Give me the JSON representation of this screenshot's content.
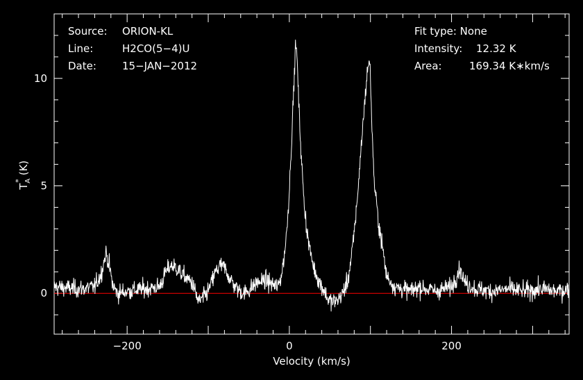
{
  "info_left": {
    "source_key": "Source:",
    "source_val": "ORION-KL",
    "line_key": "Line:",
    "line_val": "H2CO(5−4)U",
    "date_key": "Date:",
    "date_val": "15−JAN−2012"
  },
  "info_right": {
    "fit_text": "Fit type: None",
    "intensity_key": "Intensity:",
    "intensity_val": "12.32 K",
    "area_key": "Area:",
    "area_val": "169.34 K∗km/s"
  },
  "colors": {
    "background": "#000000",
    "axes": "#ffffff",
    "spectrum": "#ffffff",
    "baseline": "#ff0000"
  },
  "chart_data": {
    "type": "line",
    "xlabel": "Velocity (km/s)",
    "ylabel_main": "T",
    "ylabel_sup": "*",
    "ylabel_sub": "A",
    "ylabel_unit": "(K)",
    "xlim": [
      -290,
      345
    ],
    "ylim": [
      -1.9,
      13.0
    ],
    "xticks": [
      -200,
      0,
      200
    ],
    "xtick_labels": [
      "−200",
      "0",
      "200"
    ],
    "yticks": [
      0,
      5,
      10
    ],
    "ytick_labels": [
      "0",
      "5",
      "10"
    ],
    "baseline_y": 0,
    "series": [
      {
        "x": [
          -290,
          -260,
          -240,
          -232,
          -226,
          -222,
          -218,
          -212,
          -200,
          -180,
          -160,
          -152,
          -146,
          -140,
          -130,
          -120,
          -112,
          -106,
          -100,
          -92,
          -86,
          -80,
          -72,
          -64,
          -56,
          -48,
          -40,
          -30,
          -20,
          -14,
          -10,
          -6,
          -3,
          0,
          2,
          4,
          6,
          8,
          10,
          12,
          15,
          18,
          22,
          26,
          30,
          36,
          42,
          48,
          54,
          60,
          66,
          72,
          76,
          80,
          84,
          88,
          92,
          95,
          98,
          100,
          102,
          105,
          110,
          115,
          120,
          130,
          150,
          160,
          180,
          200,
          206,
          210,
          216,
          230,
          250,
          270,
          290,
          310,
          330,
          345
        ],
        "y": [
          0.3,
          0.2,
          0.3,
          0.9,
          1.9,
          1.3,
          0.4,
          0.0,
          0.1,
          0.2,
          0.3,
          1.0,
          1.3,
          1.2,
          0.8,
          0.5,
          -0.4,
          -0.2,
          0.1,
          0.9,
          1.3,
          1.2,
          0.6,
          0.2,
          0.0,
          0.2,
          0.5,
          0.6,
          0.4,
          0.3,
          0.8,
          1.8,
          3.0,
          4.8,
          6.5,
          8.2,
          10.0,
          11.8,
          10.5,
          8.5,
          6.2,
          4.3,
          2.8,
          1.9,
          1.2,
          0.6,
          0.2,
          -0.3,
          -0.4,
          -0.3,
          0.0,
          0.6,
          1.5,
          2.8,
          4.5,
          6.5,
          8.5,
          9.8,
          10.9,
          10.2,
          7.5,
          5.0,
          3.3,
          2.1,
          0.8,
          0.3,
          0.1,
          0.3,
          0.1,
          0.3,
          0.8,
          1.2,
          0.5,
          0.2,
          0.1,
          0.2,
          0.1,
          0.2,
          0.1,
          0.2
        ],
        "noise_rms": 0.35
      }
    ]
  }
}
